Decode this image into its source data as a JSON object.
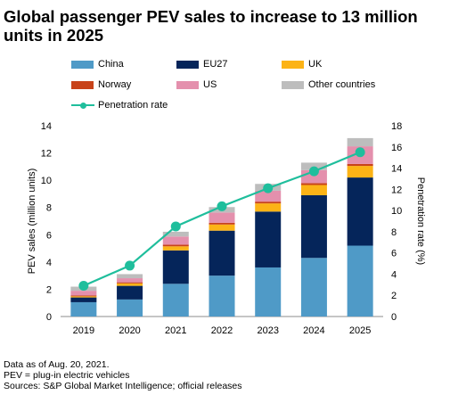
{
  "title": "Global passenger PEV sales to increase to 13 million units in 2025",
  "notes": [
    "Data as of Aug. 20, 2021.",
    "PEV = plug-in electric vehicles",
    "Sources: S&P Global Market Intelligence; official releases"
  ],
  "chart_data": {
    "type": "bar",
    "stacked": true,
    "title": "Global passenger PEV sales to increase to 13 million units in 2025",
    "ylabel": "PEV sales (million units)",
    "y2label": "Penetration rate (%)",
    "ylim": [
      0,
      14
    ],
    "yticks": [
      0,
      2,
      4,
      6,
      8,
      10,
      12,
      14
    ],
    "y2lim": [
      0,
      18
    ],
    "y2ticks": [
      0,
      2,
      4,
      6,
      8,
      10,
      12,
      14,
      16,
      18
    ],
    "legend_position": "top",
    "categories": [
      "2019",
      "2020",
      "2021",
      "2022",
      "2023",
      "2024",
      "2025"
    ],
    "series": [
      {
        "name": "China",
        "color": "#4f9ac7",
        "values": [
          1.05,
          1.25,
          2.4,
          3.0,
          3.6,
          4.3,
          5.2
        ]
      },
      {
        "name": "EU27",
        "color": "#05255a",
        "values": [
          0.35,
          1.0,
          2.45,
          3.3,
          4.1,
          4.6,
          5.0
        ]
      },
      {
        "name": "UK",
        "color": "#fcb316",
        "values": [
          0.08,
          0.18,
          0.3,
          0.45,
          0.6,
          0.75,
          0.85
        ]
      },
      {
        "name": "Norway",
        "color": "#c8431a",
        "values": [
          0.06,
          0.08,
          0.12,
          0.13,
          0.13,
          0.14,
          0.14
        ]
      },
      {
        "name": "US",
        "color": "#e490ad",
        "values": [
          0.35,
          0.3,
          0.6,
          0.75,
          0.8,
          0.95,
          1.3
        ]
      },
      {
        "name": "Other countries",
        "color": "#bdbdbd",
        "values": [
          0.3,
          0.3,
          0.35,
          0.4,
          0.5,
          0.55,
          0.6
        ]
      }
    ],
    "line_series": {
      "name": "Penetration rate",
      "color": "#1fbe9c",
      "axis": "right",
      "values": [
        2.9,
        4.8,
        8.5,
        10.4,
        12.1,
        13.7,
        15.5
      ]
    }
  }
}
